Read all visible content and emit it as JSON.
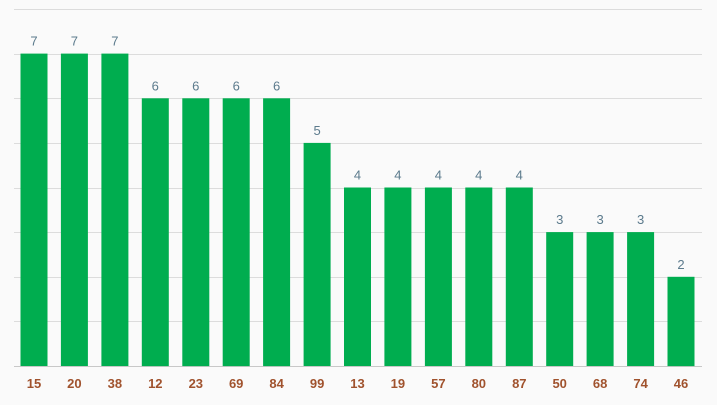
{
  "chart_data": {
    "type": "bar",
    "categories": [
      "15",
      "20",
      "38",
      "12",
      "23",
      "69",
      "84",
      "99",
      "13",
      "19",
      "57",
      "80",
      "87",
      "50",
      "68",
      "74",
      "46"
    ],
    "values": [
      7,
      7,
      7,
      6,
      6,
      6,
      6,
      5,
      4,
      4,
      4,
      4,
      4,
      3,
      3,
      3,
      2
    ],
    "ylim": [
      0,
      8
    ],
    "grid": true,
    "legend": "none",
    "colors": {
      "bar": "#00ad4f",
      "grid": "#dcdcdc",
      "value_label": "#5b7a8c",
      "category_label": "#a0522d",
      "background": "#fafafa"
    }
  }
}
